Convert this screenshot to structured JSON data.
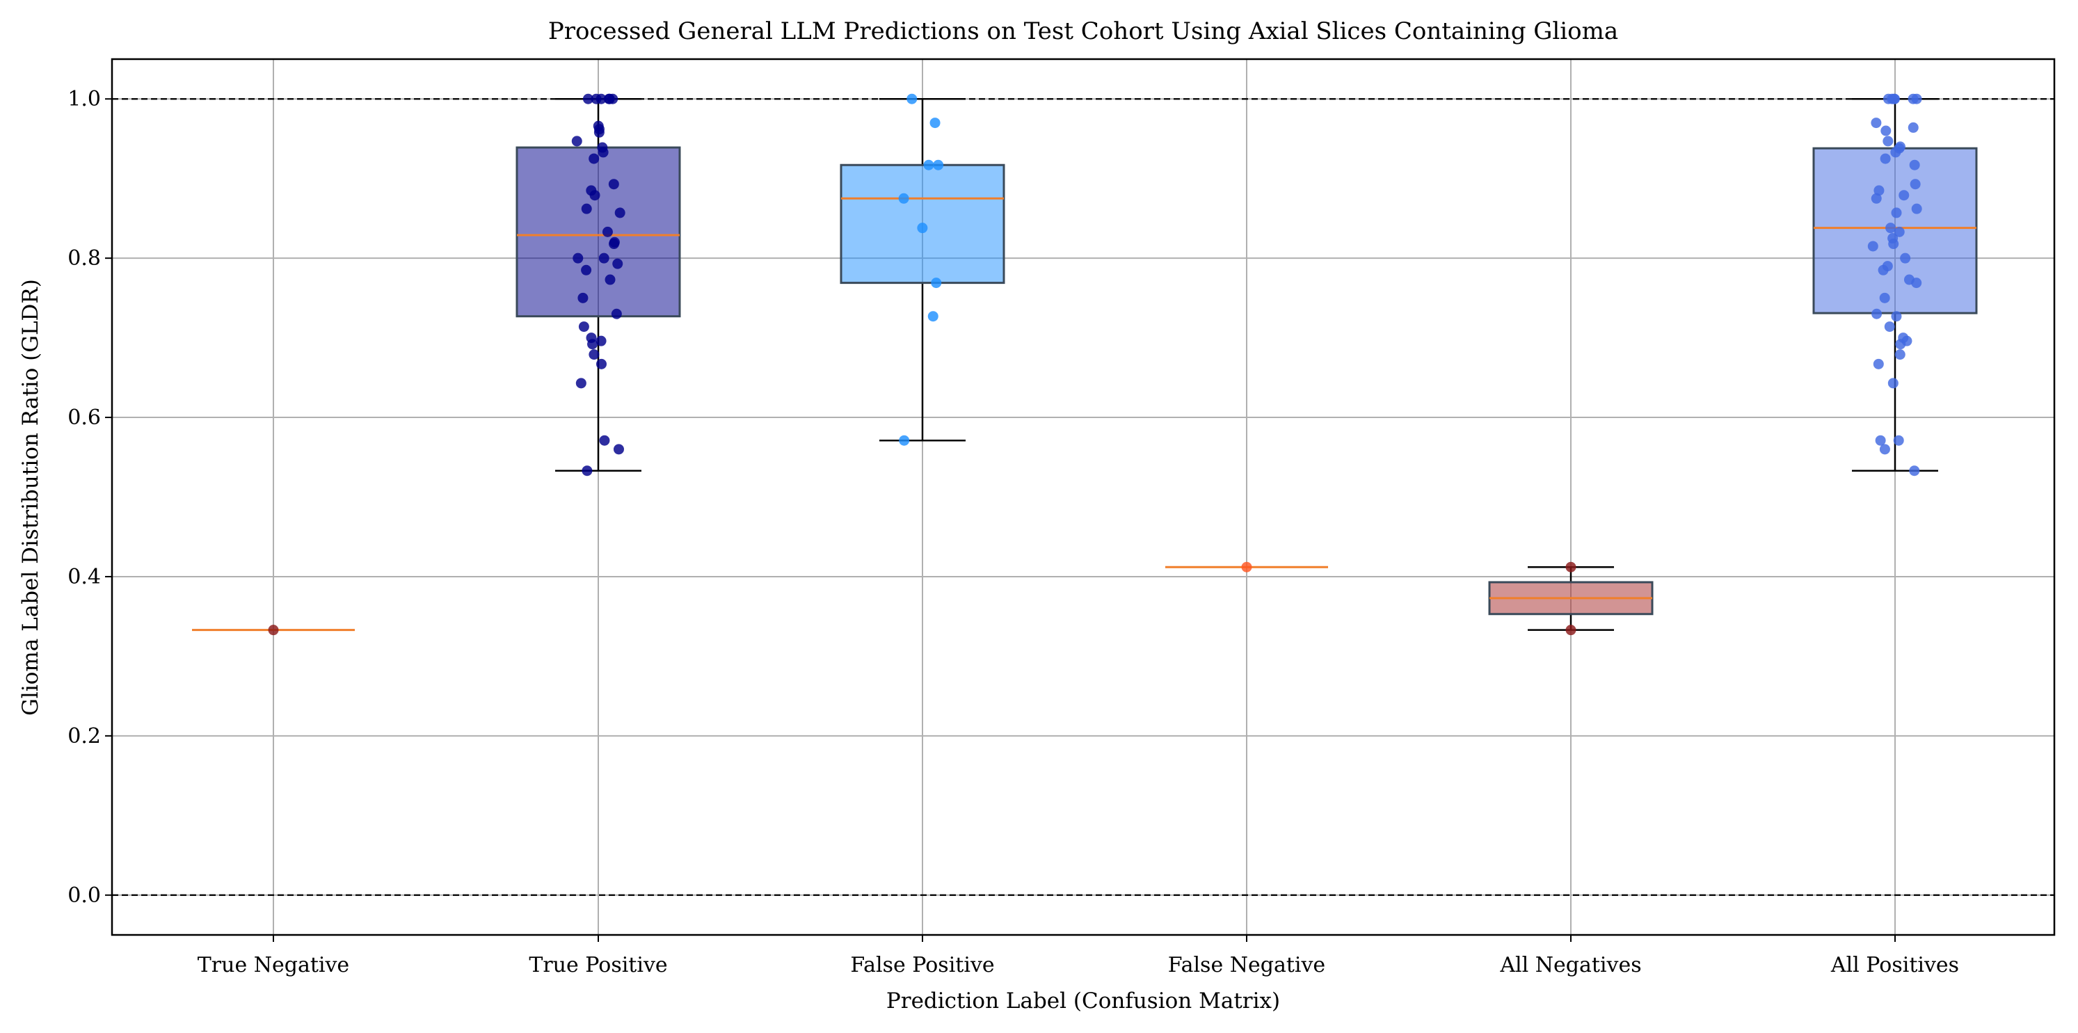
{
  "chart_data": {
    "type": "box",
    "title": "Processed General LLM Predictions on Test Cohort Using Axial Slices Containing Glioma",
    "xlabel": "Prediction Label (Confusion Matrix)",
    "ylabel": "Glioma Label Distribution Ratio (GLDR)",
    "ylim": [
      -0.05,
      1.05
    ],
    "yticks": [
      "0.0",
      "0.2",
      "0.4",
      "0.6",
      "0.8",
      "1.0"
    ],
    "grid": true,
    "reference_lines": [
      0.0,
      1.0
    ],
    "median_color": "#f07f2b",
    "categories": [
      "True Negative",
      "True Positive",
      "False Positive",
      "False Negative",
      "All Negatives",
      "All Positives"
    ],
    "boxes": [
      {
        "name": "True Negative",
        "min": 0.333,
        "q1": 0.333,
        "median": 0.333,
        "q3": 0.333,
        "max": 0.333,
        "box_color": "#a52a2a",
        "point_color": "#8b1a1a",
        "points": [
          0.333
        ]
      },
      {
        "name": "True Positive",
        "min": 0.533,
        "q1": 0.727,
        "median": 0.829,
        "q3": 0.939,
        "max": 1.0,
        "box_color": "#00008b",
        "point_color": "#00008b",
        "points": [
          1.0,
          1.0,
          1.0,
          1.0,
          1.0,
          1.0,
          0.966,
          0.962,
          0.958,
          0.947,
          0.939,
          0.933,
          0.925,
          0.893,
          0.885,
          0.879,
          0.862,
          0.857,
          0.833,
          0.82,
          0.818,
          0.8,
          0.8,
          0.793,
          0.785,
          0.773,
          0.75,
          0.73,
          0.714,
          0.7,
          0.696,
          0.692,
          0.679,
          0.667,
          0.643,
          0.571,
          0.56,
          0.533
        ]
      },
      {
        "name": "False Positive",
        "min": 0.571,
        "q1": 0.769,
        "median": 0.875,
        "q3": 0.917,
        "max": 1.0,
        "box_color": "#1e90ff",
        "point_color": "#1e90ff",
        "points": [
          1.0,
          0.97,
          0.917,
          0.917,
          0.875,
          0.838,
          0.769,
          0.727,
          0.571
        ]
      },
      {
        "name": "False Negative",
        "min": 0.412,
        "q1": 0.412,
        "median": 0.412,
        "q3": 0.412,
        "max": 0.412,
        "box_color": "#ff6347",
        "point_color": "#ff5722",
        "points": [
          0.412
        ]
      },
      {
        "name": "All Negatives",
        "min": 0.333,
        "q1": 0.353,
        "median": 0.373,
        "q3": 0.393,
        "max": 0.412,
        "box_color": "#a52a2a",
        "point_color": "#8b1a1a",
        "points": [
          0.412,
          0.333
        ]
      },
      {
        "name": "All Positives",
        "min": 0.533,
        "q1": 0.731,
        "median": 0.838,
        "q3": 0.938,
        "max": 1.0,
        "box_color": "#4169e1",
        "point_color": "#4169e1",
        "points": [
          1.0,
          1.0,
          1.0,
          1.0,
          1.0,
          1.0,
          0.97,
          0.964,
          0.96,
          0.947,
          0.94,
          0.938,
          0.933,
          0.925,
          0.917,
          0.893,
          0.885,
          0.879,
          0.875,
          0.862,
          0.857,
          0.838,
          0.833,
          0.825,
          0.818,
          0.815,
          0.8,
          0.79,
          0.785,
          0.773,
          0.769,
          0.75,
          0.73,
          0.727,
          0.714,
          0.7,
          0.696,
          0.692,
          0.679,
          0.667,
          0.643,
          0.571,
          0.571,
          0.56,
          0.533
        ]
      }
    ]
  }
}
